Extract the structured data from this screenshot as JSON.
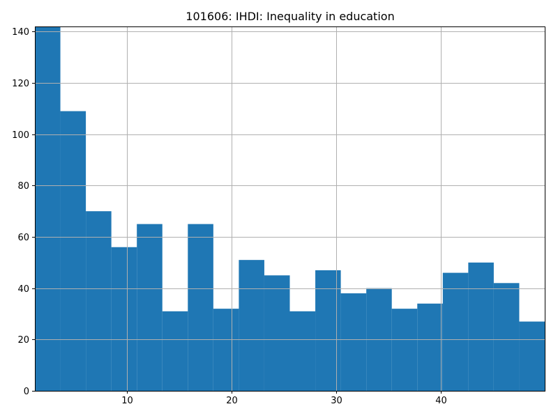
{
  "chart_data": {
    "type": "bar",
    "title": "101606: IHDI: Inequality in education",
    "xlabel": "",
    "ylabel": "",
    "bar_color": "#1f77b4",
    "grid": true,
    "xlim": [
      1.2,
      49.9
    ],
    "ylim": [
      0,
      142
    ],
    "x_ticks": [
      10,
      20,
      30,
      40
    ],
    "y_ticks": [
      0,
      20,
      40,
      60,
      80,
      100,
      120,
      140
    ],
    "bins": [
      {
        "x0": 1.2,
        "x1": 3.635,
        "value": 142
      },
      {
        "x0": 3.635,
        "x1": 6.07,
        "value": 109
      },
      {
        "x0": 6.07,
        "x1": 8.505,
        "value": 70
      },
      {
        "x0": 8.505,
        "x1": 10.94,
        "value": 56
      },
      {
        "x0": 10.94,
        "x1": 13.375,
        "value": 65
      },
      {
        "x0": 13.375,
        "x1": 15.81,
        "value": 31
      },
      {
        "x0": 15.81,
        "x1": 18.245,
        "value": 65
      },
      {
        "x0": 18.245,
        "x1": 20.68,
        "value": 32
      },
      {
        "x0": 20.68,
        "x1": 23.115,
        "value": 51
      },
      {
        "x0": 23.115,
        "x1": 25.55,
        "value": 45
      },
      {
        "x0": 25.55,
        "x1": 27.985,
        "value": 31
      },
      {
        "x0": 27.985,
        "x1": 30.42,
        "value": 47
      },
      {
        "x0": 30.42,
        "x1": 32.855,
        "value": 38
      },
      {
        "x0": 32.855,
        "x1": 35.29,
        "value": 40
      },
      {
        "x0": 35.29,
        "x1": 37.725,
        "value": 32
      },
      {
        "x0": 37.725,
        "x1": 40.16,
        "value": 34
      },
      {
        "x0": 40.16,
        "x1": 42.595,
        "value": 46
      },
      {
        "x0": 42.595,
        "x1": 45.03,
        "value": 50
      },
      {
        "x0": 45.03,
        "x1": 47.465,
        "value": 42
      },
      {
        "x0": 47.465,
        "x1": 49.9,
        "value": 27
      }
    ]
  }
}
